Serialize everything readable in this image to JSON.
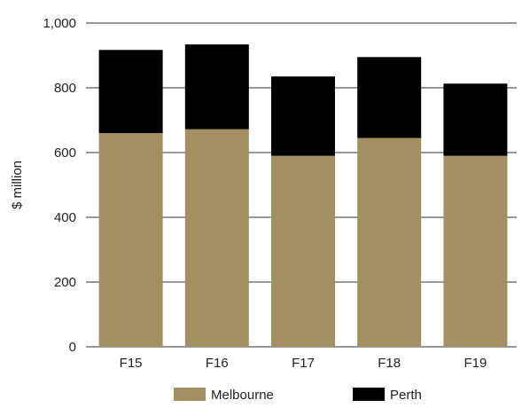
{
  "chart_data": {
    "type": "bar",
    "stacked": true,
    "categories": [
      "F15",
      "F16",
      "F17",
      "F18",
      "F19"
    ],
    "series": [
      {
        "name": "Melbourne",
        "values": [
          660,
          672,
          590,
          645,
          590
        ],
        "color": "#a39062"
      },
      {
        "name": "Perth",
        "values": [
          257,
          262,
          245,
          250,
          223
        ],
        "color": "#000000"
      }
    ],
    "ylabel": "$ million",
    "xlabel": "",
    "ylim": [
      0,
      1000
    ],
    "yticks": [
      0,
      200,
      400,
      600,
      800,
      1000
    ],
    "ytick_labels": [
      "0",
      "200",
      "400",
      "600",
      "800",
      "1,000"
    ],
    "grid": true,
    "gridline_color": "#5a5a5a",
    "legend_position": "bottom"
  }
}
